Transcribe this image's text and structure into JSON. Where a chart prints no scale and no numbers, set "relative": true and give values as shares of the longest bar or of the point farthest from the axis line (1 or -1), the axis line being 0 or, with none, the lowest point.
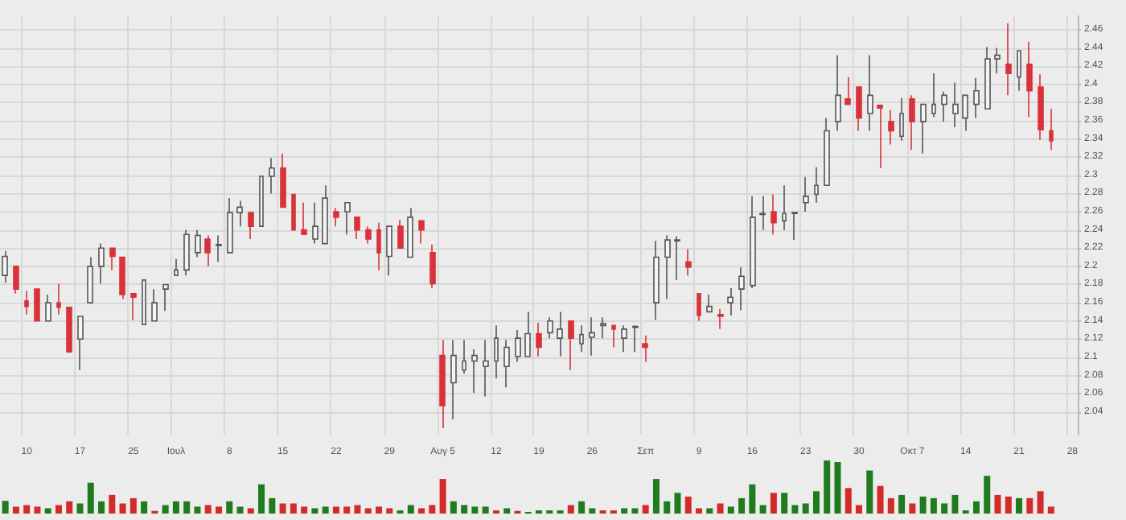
{
  "chart_data": [
    {
      "type": "candlestick",
      "categories": [
        null,
        null,
        "10",
        null,
        null,
        null,
        null,
        "17",
        null,
        null,
        null,
        null,
        "25",
        null,
        null,
        null,
        "Ιουλ",
        null,
        null,
        null,
        null,
        "8",
        null,
        null,
        null,
        null,
        "15",
        null,
        null,
        null,
        null,
        "22",
        null,
        null,
        null,
        null,
        "29",
        null,
        null,
        null,
        null,
        "Αυγ 5",
        null,
        null,
        null,
        null,
        "12",
        null,
        null,
        null,
        "19",
        null,
        null,
        null,
        null,
        "26",
        null,
        null,
        null,
        null,
        "Σεπ",
        null,
        null,
        null,
        null,
        "9",
        null,
        null,
        null,
        null,
        "16",
        null,
        null,
        null,
        null,
        "23",
        null,
        null,
        null,
        null,
        "30",
        null,
        null,
        null,
        null,
        "Οκτ 7",
        null,
        null,
        null,
        null,
        "14",
        null,
        null,
        null,
        null,
        "21",
        null,
        null,
        null,
        null,
        "28"
      ],
      "ohlc": [
        [
          2.19,
          2.217,
          2.182,
          2.211
        ],
        [
          2.2,
          2.2,
          2.17,
          2.175
        ],
        [
          2.162,
          2.173,
          2.147,
          2.156
        ],
        [
          2.175,
          2.175,
          2.14,
          2.14
        ],
        [
          2.14,
          2.169,
          2.14,
          2.16
        ],
        [
          2.16,
          2.181,
          2.147,
          2.155
        ],
        [
          2.155,
          2.155,
          2.106,
          2.106
        ],
        [
          2.12,
          2.145,
          2.086,
          2.145
        ],
        [
          2.16,
          2.21,
          2.16,
          2.2
        ],
        [
          2.2,
          2.225,
          2.181,
          2.22
        ],
        [
          2.22,
          2.22,
          2.196,
          2.211
        ],
        [
          2.21,
          2.21,
          2.164,
          2.169
        ],
        [
          2.17,
          2.17,
          2.141,
          2.166
        ],
        [
          2.136,
          2.185,
          2.136,
          2.185
        ],
        [
          2.14,
          2.175,
          2.14,
          2.16
        ],
        [
          2.175,
          2.18,
          2.151,
          2.18
        ],
        [
          2.19,
          2.208,
          2.19,
          2.196
        ],
        [
          2.196,
          2.24,
          2.19,
          2.235
        ],
        [
          2.215,
          2.24,
          2.21,
          2.234
        ],
        [
          2.23,
          2.234,
          2.2,
          2.215
        ],
        [
          2.223,
          2.234,
          2.205,
          2.224
        ],
        [
          2.215,
          2.275,
          2.215,
          2.259
        ],
        [
          2.259,
          2.272,
          2.244,
          2.265
        ],
        [
          2.259,
          2.259,
          2.23,
          2.244
        ],
        [
          2.244,
          2.299,
          2.244,
          2.299
        ],
        [
          2.299,
          2.319,
          2.28,
          2.308
        ],
        [
          2.308,
          2.324,
          2.265,
          2.265
        ],
        [
          2.279,
          2.279,
          2.24,
          2.24
        ],
        [
          2.24,
          2.27,
          2.235,
          2.235
        ],
        [
          2.23,
          2.27,
          2.225,
          2.244
        ],
        [
          2.225,
          2.289,
          2.225,
          2.275
        ],
        [
          2.26,
          2.264,
          2.244,
          2.254
        ],
        [
          2.26,
          2.27,
          2.235,
          2.27
        ],
        [
          2.254,
          2.254,
          2.23,
          2.24
        ],
        [
          2.24,
          2.244,
          2.225,
          2.23
        ],
        [
          2.24,
          2.248,
          2.196,
          2.215
        ],
        [
          2.211,
          2.244,
          2.19,
          2.244
        ],
        [
          2.244,
          2.251,
          2.22,
          2.22
        ],
        [
          2.21,
          2.264,
          2.21,
          2.254
        ],
        [
          2.25,
          2.25,
          2.225,
          2.24
        ],
        [
          2.215,
          2.224,
          2.176,
          2.181
        ],
        [
          2.102,
          2.119,
          2.022,
          2.047
        ],
        [
          2.072,
          2.119,
          2.032,
          2.102
        ],
        [
          2.086,
          2.119,
          2.082,
          2.096
        ],
        [
          2.096,
          2.109,
          2.061,
          2.102
        ],
        [
          2.09,
          2.119,
          2.057,
          2.096
        ],
        [
          2.096,
          2.135,
          2.077,
          2.121
        ],
        [
          2.09,
          2.119,
          2.067,
          2.111
        ],
        [
          2.101,
          2.13,
          2.095,
          2.121
        ],
        [
          2.101,
          2.15,
          2.101,
          2.126
        ],
        [
          2.126,
          2.138,
          2.101,
          2.111
        ],
        [
          2.127,
          2.144,
          2.121,
          2.14
        ],
        [
          2.121,
          2.15,
          2.101,
          2.131
        ],
        [
          2.14,
          2.14,
          2.086,
          2.121
        ],
        [
          2.115,
          2.135,
          2.106,
          2.125
        ],
        [
          2.122,
          2.144,
          2.102,
          2.127
        ],
        [
          2.135,
          2.144,
          2.121,
          2.137
        ],
        [
          2.135,
          2.135,
          2.111,
          2.131
        ],
        [
          2.121,
          2.135,
          2.106,
          2.131
        ],
        [
          2.133,
          2.135,
          2.106,
          2.134
        ],
        [
          2.115,
          2.124,
          2.095,
          2.111
        ],
        [
          2.16,
          2.228,
          2.141,
          2.21
        ],
        [
          2.21,
          2.234,
          2.164,
          2.229
        ],
        [
          2.228,
          2.233,
          2.185,
          2.229
        ],
        [
          2.205,
          2.219,
          2.19,
          2.199
        ],
        [
          2.17,
          2.17,
          2.14,
          2.146
        ],
        [
          2.15,
          2.169,
          2.15,
          2.156
        ],
        [
          2.147,
          2.153,
          2.131,
          2.145
        ],
        [
          2.16,
          2.176,
          2.146,
          2.166
        ],
        [
          2.175,
          2.199,
          2.152,
          2.189
        ],
        [
          2.179,
          2.277,
          2.176,
          2.254
        ],
        [
          2.257,
          2.277,
          2.24,
          2.258
        ],
        [
          2.26,
          2.279,
          2.235,
          2.248
        ],
        [
          2.25,
          2.289,
          2.24,
          2.258
        ],
        [
          2.258,
          2.259,
          2.229,
          2.259
        ],
        [
          2.27,
          2.298,
          2.26,
          2.277
        ],
        [
          2.279,
          2.309,
          2.27,
          2.289
        ],
        [
          2.289,
          2.363,
          2.289,
          2.349
        ],
        [
          2.359,
          2.432,
          2.349,
          2.388
        ],
        [
          2.384,
          2.408,
          2.378,
          2.378
        ],
        [
          2.397,
          2.397,
          2.349,
          2.363
        ],
        [
          2.368,
          2.432,
          2.349,
          2.388
        ],
        [
          2.377,
          2.377,
          2.308,
          2.374
        ],
        [
          2.359,
          2.372,
          2.334,
          2.349
        ],
        [
          2.343,
          2.385,
          2.338,
          2.368
        ],
        [
          2.384,
          2.388,
          2.328,
          2.359
        ],
        [
          2.359,
          2.378,
          2.324,
          2.378
        ],
        [
          2.368,
          2.412,
          2.364,
          2.378
        ],
        [
          2.378,
          2.392,
          2.359,
          2.388
        ],
        [
          2.368,
          2.402,
          2.353,
          2.378
        ],
        [
          2.363,
          2.388,
          2.349,
          2.388
        ],
        [
          2.378,
          2.407,
          2.363,
          2.393
        ],
        [
          2.373,
          2.441,
          2.373,
          2.428
        ],
        [
          2.428,
          2.44,
          2.412,
          2.432
        ],
        [
          2.422,
          2.467,
          2.388,
          2.412
        ],
        [
          2.408,
          2.437,
          2.393,
          2.437
        ],
        [
          2.422,
          2.447,
          2.364,
          2.393
        ],
        [
          2.397,
          2.411,
          2.339,
          2.35
        ],
        [
          2.349,
          2.373,
          2.328,
          2.338
        ],
        null,
        null
      ],
      "ylim": [
        2.015,
        2.475
      ],
      "yticks": [
        2.04,
        2.06,
        2.08,
        2.1,
        2.12,
        2.14,
        2.16,
        2.18,
        2.2,
        2.22,
        2.24,
        2.26,
        2.28,
        2.3,
        2.32,
        2.34,
        2.36,
        2.38,
        2.4,
        2.42,
        2.44,
        2.46
      ],
      "grid": true
    },
    {
      "type": "bar",
      "relative": true,
      "categories": [
        null,
        null,
        null,
        null,
        null,
        null,
        null,
        null,
        null,
        null,
        null,
        null,
        null,
        null,
        null,
        null,
        null,
        null,
        null,
        null,
        null,
        null,
        null,
        null,
        null,
        null,
        null,
        null,
        null,
        null,
        null,
        null,
        null,
        null,
        null,
        null,
        null,
        null,
        null,
        null,
        null,
        null,
        null,
        null,
        null,
        null,
        null,
        null,
        null,
        null,
        null,
        null,
        null,
        null,
        null,
        null,
        null,
        null,
        null,
        null,
        null,
        null,
        null,
        null,
        null,
        null,
        null,
        null,
        null,
        null,
        null,
        null,
        null,
        null,
        null,
        null,
        null,
        null,
        null,
        null,
        null,
        null,
        null,
        null,
        null,
        null,
        null,
        null,
        null,
        null,
        null,
        null,
        null,
        null,
        null,
        null,
        null,
        null,
        null,
        null,
        null
      ],
      "values": [
        0.24,
        0.13,
        0.16,
        0.13,
        0.1,
        0.16,
        0.23,
        0.19,
        0.58,
        0.23,
        0.35,
        0.19,
        0.29,
        0.23,
        0.05,
        0.16,
        0.23,
        0.23,
        0.13,
        0.16,
        0.13,
        0.23,
        0.13,
        0.1,
        0.55,
        0.29,
        0.19,
        0.19,
        0.13,
        0.1,
        0.13,
        0.13,
        0.13,
        0.16,
        0.1,
        0.13,
        0.1,
        0.06,
        0.16,
        0.1,
        0.16,
        0.65,
        0.23,
        0.16,
        0.13,
        0.13,
        0.06,
        0.1,
        0.05,
        0.03,
        0.06,
        0.06,
        0.06,
        0.16,
        0.23,
        0.1,
        0.06,
        0.06,
        0.1,
        0.1,
        0.16,
        0.65,
        0.23,
        0.39,
        0.32,
        0.1,
        0.1,
        0.19,
        0.13,
        0.29,
        0.55,
        0.16,
        0.39,
        0.39,
        0.16,
        0.19,
        0.42,
        1,
        0.97,
        0.48,
        0.16,
        0.81,
        0.52,
        0.29,
        0.35,
        0.19,
        0.32,
        0.29,
        0.19,
        0.35,
        0.06,
        0.23,
        0.71,
        0.35,
        0.32,
        0.29,
        0.29,
        0.42,
        0.13,
        null,
        null
      ],
      "colors": [
        "#1e7b1e",
        "#d42a2a",
        "#d42a2a",
        "#d42a2a",
        "#1e7b1e",
        "#d42a2a",
        "#d42a2a",
        "#1e7b1e",
        "#1e7b1e",
        "#1e7b1e",
        "#d42a2a",
        "#d42a2a",
        "#d42a2a",
        "#1e7b1e",
        "#d42a2a",
        "#1e7b1e",
        "#1e7b1e",
        "#1e7b1e",
        "#1e7b1e",
        "#d42a2a",
        "#d42a2a",
        "#1e7b1e",
        "#1e7b1e",
        "#d42a2a",
        "#1e7b1e",
        "#1e7b1e",
        "#d42a2a",
        "#d42a2a",
        "#d42a2a",
        "#1e7b1e",
        "#1e7b1e",
        "#d42a2a",
        "#d42a2a",
        "#d42a2a",
        "#d42a2a",
        "#d42a2a",
        "#d42a2a",
        "#1e7b1e",
        "#1e7b1e",
        "#d42a2a",
        "#d42a2a",
        "#d42a2a",
        "#1e7b1e",
        "#1e7b1e",
        "#1e7b1e",
        "#1e7b1e",
        "#d42a2a",
        "#1e7b1e",
        "#d42a2a",
        "#1e7b1e",
        "#1e7b1e",
        "#1e7b1e",
        "#1e7b1e",
        "#d42a2a",
        "#1e7b1e",
        "#1e7b1e",
        "#d42a2a",
        "#d42a2a",
        "#1e7b1e",
        "#1e7b1e",
        "#d42a2a",
        "#1e7b1e",
        "#1e7b1e",
        "#1e7b1e",
        "#d42a2a",
        "#d42a2a",
        "#1e7b1e",
        "#d42a2a",
        "#1e7b1e",
        "#1e7b1e",
        "#1e7b1e",
        "#1e7b1e",
        "#d42a2a",
        "#1e7b1e",
        "#1e7b1e",
        "#1e7b1e",
        "#1e7b1e",
        "#1e7b1e",
        "#1e7b1e",
        "#d42a2a",
        "#d42a2a",
        "#1e7b1e",
        "#d42a2a",
        "#d42a2a",
        "#1e7b1e",
        "#d42a2a",
        "#1e7b1e",
        "#1e7b1e",
        "#1e7b1e",
        "#1e7b1e",
        "#1e7b1e",
        "#1e7b1e",
        "#1e7b1e",
        "#d42a2a",
        "#d42a2a",
        "#1e7b1e",
        "#d42a2a",
        "#d42a2a",
        "#d42a2a",
        "#1e7b1e",
        "#1e7b1e"
      ]
    }
  ]
}
